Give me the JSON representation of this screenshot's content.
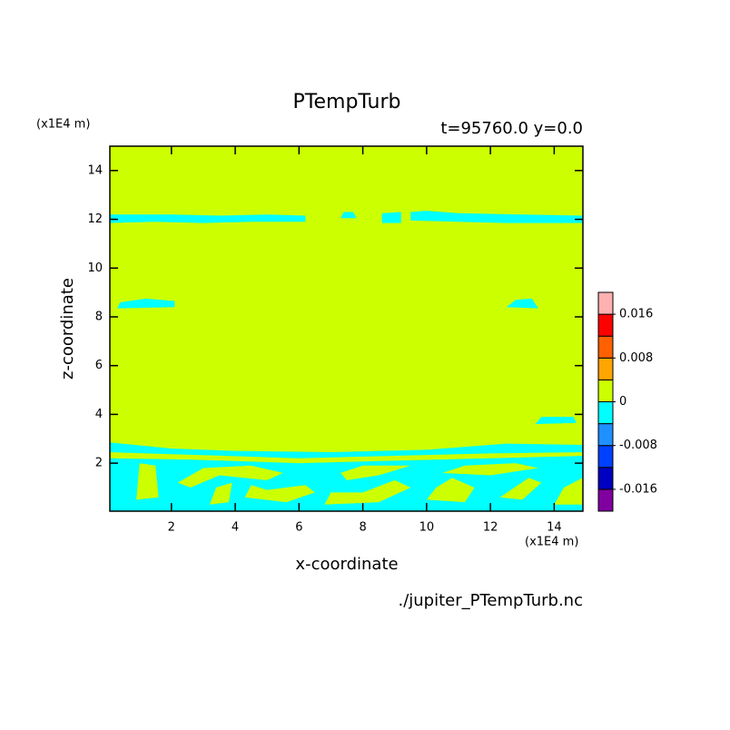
{
  "chart_data": {
    "type": "contour",
    "title": "PTempTurb",
    "subtitle": "t=95760.0 y=0.0",
    "x_label": "x-coordinate",
    "y_label": "z-coordinate",
    "x_units": "(x1E4 m)",
    "y_units": "(x1E4 m)",
    "footer": "./jupiter_PTempTurb.nc",
    "xlim": [
      0.07,
      14.9
    ],
    "ylim": [
      0.03,
      15.0
    ],
    "xticks": [
      2,
      4,
      6,
      8,
      10,
      12,
      14
    ],
    "yticks": [
      2,
      4,
      6,
      8,
      10,
      12,
      14
    ],
    "background_color": "#ccff00",
    "regions": [
      {
        "color": "#00ffff",
        "points": [
          [
            0.07,
            11.85
          ],
          [
            1.5,
            11.9
          ],
          [
            3,
            11.85
          ],
          [
            4.5,
            11.9
          ],
          [
            6.2,
            11.9
          ],
          [
            6.2,
            12.15
          ],
          [
            5,
            12.2
          ],
          [
            3.5,
            12.15
          ],
          [
            2,
            12.2
          ],
          [
            0.07,
            12.2
          ]
        ]
      },
      {
        "color": "#00ffff",
        "points": [
          [
            7.3,
            12.05
          ],
          [
            7.8,
            12.05
          ],
          [
            7.7,
            12.3
          ],
          [
            7.4,
            12.3
          ]
        ]
      },
      {
        "color": "#00ffff",
        "points": [
          [
            8.6,
            11.85
          ],
          [
            9.2,
            11.85
          ],
          [
            9.2,
            12.3
          ],
          [
            8.6,
            12.25
          ]
        ]
      },
      {
        "color": "#00ffff",
        "points": [
          [
            9.5,
            11.95
          ],
          [
            11,
            11.9
          ],
          [
            12.5,
            11.85
          ],
          [
            14.9,
            11.85
          ],
          [
            14.9,
            12.15
          ],
          [
            13,
            12.2
          ],
          [
            11,
            12.25
          ],
          [
            10,
            12.35
          ],
          [
            9.5,
            12.3
          ]
        ]
      },
      {
        "color": "#00ffff",
        "points": [
          [
            0.3,
            8.35
          ],
          [
            2.1,
            8.4
          ],
          [
            2.1,
            8.65
          ],
          [
            1.2,
            8.75
          ],
          [
            0.4,
            8.6
          ]
        ]
      },
      {
        "color": "#00ffff",
        "points": [
          [
            12.5,
            8.4
          ],
          [
            13.5,
            8.35
          ],
          [
            13.3,
            8.75
          ],
          [
            12.8,
            8.7
          ]
        ]
      },
      {
        "color": "#00ffff",
        "points": [
          [
            13.4,
            3.6
          ],
          [
            14.7,
            3.65
          ],
          [
            14.6,
            3.9
          ],
          [
            13.6,
            3.9
          ]
        ]
      },
      {
        "color": "#00ffff",
        "points": [
          [
            0.07,
            0.03
          ],
          [
            14.9,
            0.03
          ],
          [
            14.9,
            2.75
          ],
          [
            12.5,
            2.8
          ],
          [
            10,
            2.55
          ],
          [
            7,
            2.45
          ],
          [
            4,
            2.5
          ],
          [
            2,
            2.6
          ],
          [
            0.07,
            2.85
          ]
        ]
      },
      {
        "color": "#ccff00",
        "points": [
          [
            0.07,
            2.2
          ],
          [
            2.5,
            2.15
          ],
          [
            6,
            2.0
          ],
          [
            9,
            2.1
          ],
          [
            12,
            2.2
          ],
          [
            14.9,
            2.3
          ],
          [
            14.9,
            2.45
          ],
          [
            12,
            2.4
          ],
          [
            9,
            2.3
          ],
          [
            6,
            2.2
          ],
          [
            2.5,
            2.35
          ],
          [
            0.07,
            2.45
          ]
        ]
      },
      {
        "color": "#ccff00",
        "points": [
          [
            0.9,
            0.5
          ],
          [
            1.6,
            0.6
          ],
          [
            1.5,
            1.9
          ],
          [
            1.0,
            2.0
          ]
        ]
      },
      {
        "color": "#ccff00",
        "points": [
          [
            2.2,
            1.2
          ],
          [
            3.0,
            1.8
          ],
          [
            4.5,
            1.9
          ],
          [
            5.5,
            1.6
          ],
          [
            5.0,
            1.3
          ],
          [
            3.5,
            1.5
          ],
          [
            2.6,
            1.0
          ]
        ]
      },
      {
        "color": "#ccff00",
        "points": [
          [
            3.2,
            0.3
          ],
          [
            3.8,
            0.4
          ],
          [
            3.9,
            1.2
          ],
          [
            3.4,
            1.0
          ]
        ]
      },
      {
        "color": "#ccff00",
        "points": [
          [
            4.3,
            0.6
          ],
          [
            5.6,
            0.4
          ],
          [
            6.5,
            0.8
          ],
          [
            6.2,
            1.1
          ],
          [
            5.0,
            0.9
          ],
          [
            4.5,
            1.1
          ]
        ]
      },
      {
        "color": "#ccff00",
        "points": [
          [
            6.8,
            0.3
          ],
          [
            8.5,
            0.4
          ],
          [
            9.5,
            1.0
          ],
          [
            9.0,
            1.3
          ],
          [
            8.0,
            0.8
          ],
          [
            7.0,
            0.8
          ]
        ]
      },
      {
        "color": "#ccff00",
        "points": [
          [
            7.5,
            1.3
          ],
          [
            8.5,
            1.5
          ],
          [
            9.5,
            1.9
          ],
          [
            8.0,
            1.9
          ],
          [
            7.3,
            1.6
          ]
        ]
      },
      {
        "color": "#ccff00",
        "points": [
          [
            10.0,
            0.5
          ],
          [
            11.2,
            0.4
          ],
          [
            11.5,
            1.0
          ],
          [
            10.8,
            1.4
          ],
          [
            10.3,
            1.0
          ]
        ]
      },
      {
        "color": "#ccff00",
        "points": [
          [
            10.5,
            1.6
          ],
          [
            12.0,
            1.5
          ],
          [
            13.5,
            1.8
          ],
          [
            12.8,
            2.0
          ],
          [
            11.2,
            1.9
          ]
        ]
      },
      {
        "color": "#ccff00",
        "points": [
          [
            12.3,
            0.6
          ],
          [
            13.0,
            0.5
          ],
          [
            13.6,
            1.2
          ],
          [
            13.2,
            1.4
          ]
        ]
      },
      {
        "color": "#ccff00",
        "points": [
          [
            14.0,
            0.3
          ],
          [
            14.9,
            0.3
          ],
          [
            14.9,
            1.4
          ],
          [
            14.3,
            1.0
          ]
        ]
      }
    ],
    "colorbar": {
      "lim": [
        -0.02,
        0.02
      ],
      "colors": [
        "#8000a0",
        "#0000c0",
        "#0040ff",
        "#1e90ff",
        "#00ffff",
        "#ccff00",
        "#ffa500",
        "#ff6000",
        "#ff0000",
        "#ffb0b0"
      ],
      "ticks": [
        -0.016,
        -0.008,
        0,
        0.008,
        0.016
      ]
    }
  }
}
